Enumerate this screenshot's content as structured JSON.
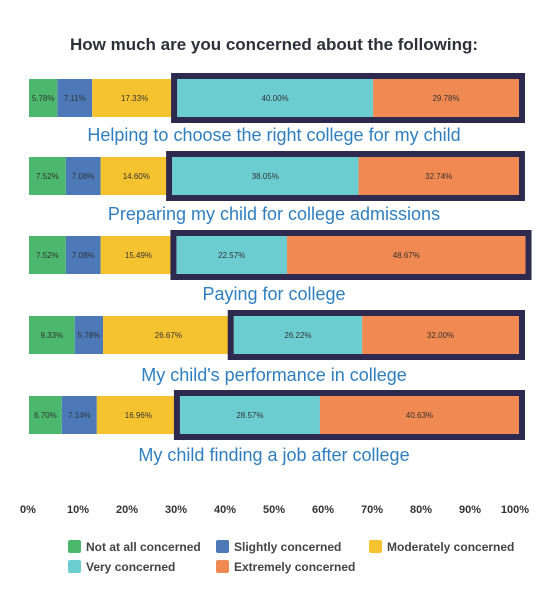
{
  "chart_data": {
    "type": "bar",
    "orientation": "horizontal",
    "stacked": true,
    "title": "How much are you concerned about the following:",
    "categories": [
      "Helping to choose the right college for my child",
      "Preparing my child for college admissions",
      "Paying for college",
      "My child's performance in college",
      "My child finding a job after college"
    ],
    "series": [
      {
        "name": "Not at all concerned",
        "color": "#4cb86d",
        "values": [
          5.78,
          7.52,
          7.52,
          9.33,
          6.7
        ],
        "labels": [
          "5.78%",
          "7.52%",
          "7.52%",
          "9.33%",
          "6.70%"
        ]
      },
      {
        "name": "Slightly concerned",
        "color": "#4d79b9",
        "values": [
          7.11,
          7.08,
          7.08,
          5.78,
          7.14
        ],
        "labels": [
          "7.11%",
          "7.08%",
          "7.08%",
          "5.78%",
          "7.14%"
        ]
      },
      {
        "name": "Moderately concerned",
        "color": "#f5c330",
        "values": [
          17.33,
          14.6,
          15.49,
          26.67,
          16.96
        ],
        "labels": [
          "17.33%",
          "14.60%",
          "15.49%",
          "26.67%",
          "16.96%"
        ]
      },
      {
        "name": "Very concerned",
        "color": "#6ccdd0",
        "values": [
          40.0,
          38.05,
          22.57,
          26.22,
          28.57
        ],
        "labels": [
          "40.00%",
          "38.05%",
          "22.57%",
          "26.22%",
          "28.57%"
        ]
      },
      {
        "name": "Extremely concerned",
        "color": "#f18a52",
        "values": [
          29.78,
          32.74,
          48.67,
          32.0,
          40.63
        ],
        "labels": [
          "29.78%",
          "32.74%",
          "48.67%",
          "32.00%",
          "40.63%"
        ]
      }
    ],
    "xlim": [
      0,
      100
    ],
    "x_ticks": [
      "0%",
      "10%",
      "20%",
      "30%",
      "40%",
      "50%",
      "60%",
      "70%",
      "80%",
      "90%",
      "100%"
    ],
    "highlight": {
      "series": [
        "Very concerned",
        "Extremely concerned"
      ],
      "color": "#2e2a4f"
    },
    "legend": {
      "placement": "bottom"
    },
    "grid": false
  }
}
